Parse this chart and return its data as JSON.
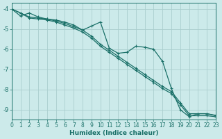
{
  "xlabel": "Humidex (Indice chaleur)",
  "bg_color": "#cceaea",
  "grid_color": "#aacece",
  "line_color": "#1a7068",
  "xlim": [
    0,
    23
  ],
  "ylim": [
    -9.5,
    -3.7
  ],
  "xticks": [
    0,
    1,
    2,
    3,
    4,
    5,
    6,
    7,
    8,
    9,
    10,
    11,
    12,
    13,
    14,
    15,
    16,
    17,
    18,
    19,
    20,
    21,
    22,
    23
  ],
  "yticks": [
    -9,
    -8,
    -7,
    -6,
    -5,
    -4
  ],
  "line1_x": [
    0,
    1,
    2,
    3,
    4,
    5,
    6,
    7,
    8,
    9,
    10,
    11,
    12,
    13,
    14,
    15,
    16,
    17,
    18,
    19,
    20,
    21,
    22,
    23
  ],
  "line1_y": [
    -4.0,
    -4.35,
    -4.2,
    -4.4,
    -4.5,
    -4.55,
    -4.65,
    -4.8,
    -5.05,
    -4.85,
    -4.65,
    -5.95,
    -6.2,
    -6.15,
    -5.85,
    -5.9,
    -6.0,
    -6.6,
    -7.95,
    -9.0,
    -9.35,
    -9.2,
    -9.2,
    -9.3
  ],
  "line2_x": [
    0,
    1,
    2,
    3,
    4,
    5,
    6,
    7,
    8,
    9,
    10,
    11,
    12,
    13,
    14,
    15,
    16,
    17,
    18,
    19,
    20,
    21,
    22,
    23
  ],
  "line2_y": [
    -4.0,
    -4.2,
    -4.45,
    -4.5,
    -4.55,
    -4.65,
    -4.8,
    -4.95,
    -5.15,
    -5.45,
    -5.85,
    -6.15,
    -6.45,
    -6.75,
    -7.05,
    -7.35,
    -7.65,
    -7.95,
    -8.2,
    -8.75,
    -9.3,
    -9.3,
    -9.3,
    -9.35
  ],
  "line3_x": [
    0,
    1,
    2,
    3,
    4,
    5,
    6,
    7,
    8,
    9,
    10,
    11,
    12,
    13,
    14,
    15,
    16,
    17,
    18,
    19,
    20,
    21,
    22,
    23
  ],
  "line3_y": [
    -4.0,
    -4.2,
    -4.4,
    -4.45,
    -4.5,
    -4.6,
    -4.72,
    -4.88,
    -5.05,
    -5.35,
    -5.75,
    -6.05,
    -6.35,
    -6.65,
    -6.95,
    -7.25,
    -7.55,
    -7.85,
    -8.1,
    -8.65,
    -9.2,
    -9.2,
    -9.2,
    -9.28
  ],
  "marker": "+",
  "markersize": 3,
  "linewidth": 0.9
}
